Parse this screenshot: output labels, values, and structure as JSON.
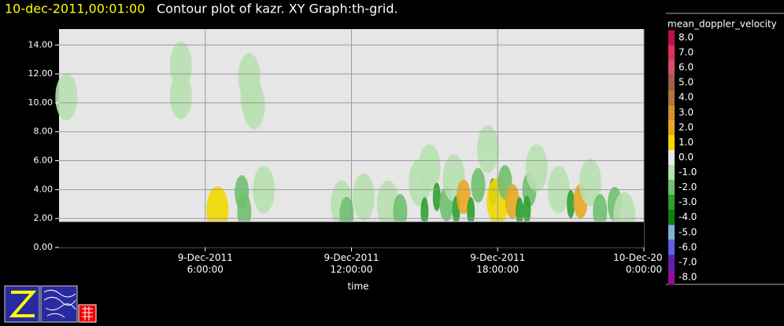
{
  "chart_data": {
    "type": "contour",
    "title_time": "10-dec-2011,00:01:00",
    "title": "Contour plot of kazr.  XY Graph:th-grid.",
    "xlabel": "time",
    "xlim": [
      0,
      24
    ],
    "xticks": [
      {
        "value": 6,
        "label": "9-Dec-2011\n6:00:00"
      },
      {
        "value": 12,
        "label": "9-Dec-2011\n12:00:00"
      },
      {
        "value": 18,
        "label": "9-Dec-2011\n18:00:00"
      },
      {
        "value": 24,
        "label": "10-Dec-2011\n0:00:00"
      }
    ],
    "ylim": [
      0,
      15.1
    ],
    "yticks": [
      {
        "value": 0,
        "label": "0.00"
      },
      {
        "value": 2,
        "label": "2.00"
      },
      {
        "value": 4,
        "label": "4.00"
      },
      {
        "value": 6,
        "label": "6.00"
      },
      {
        "value": 8,
        "label": "8.00"
      },
      {
        "value": 10,
        "label": "10.00"
      },
      {
        "value": 12,
        "label": "12.00"
      },
      {
        "value": 14,
        "label": "14.00"
      }
    ],
    "grid": true,
    "colorbar": {
      "title": "mean_doppler_velocity",
      "levels": [
        {
          "value": 8,
          "label": "8.0"
        },
        {
          "value": 7,
          "label": "7.0"
        },
        {
          "value": 6,
          "label": "6.0"
        },
        {
          "value": 5,
          "label": "5.0"
        },
        {
          "value": 4,
          "label": "4.0"
        },
        {
          "value": 3,
          "label": "3.0"
        },
        {
          "value": 2,
          "label": "2.0"
        },
        {
          "value": 1,
          "label": "1.0"
        },
        {
          "value": 0,
          "label": "0.0"
        },
        {
          "value": -1,
          "label": "-1.0"
        },
        {
          "value": -2,
          "label": "-2.0"
        },
        {
          "value": -3,
          "label": "-3.0"
        },
        {
          "value": -4,
          "label": "-4.0"
        },
        {
          "value": -5,
          "label": "-5.0"
        },
        {
          "value": -6,
          "label": "-6.0"
        },
        {
          "value": -7,
          "label": "-7.0"
        },
        {
          "value": -8,
          "label": "-8.0"
        }
      ],
      "colors": [
        "#c0104a",
        "#e0305a",
        "#d05070",
        "#a0604a",
        "#b0783a",
        "#d8902a",
        "#e8a820",
        "#f0d800",
        "#e8e8e8",
        "#b8e0b0",
        "#70c070",
        "#30a030",
        "#108010",
        "#80b0d8",
        "#6060e0",
        "#6020b0",
        "#901090"
      ]
    },
    "points": [
      {
        "x": 0.3,
        "y": 10.4,
        "v": -1.5
      },
      {
        "x": 5.0,
        "y": 12.6,
        "v": -1.5
      },
      {
        "x": 5.0,
        "y": 10.5,
        "v": -1.5
      },
      {
        "x": 7.8,
        "y": 11.8,
        "v": -1.5
      },
      {
        "x": 7.9,
        "y": 10.4,
        "v": -1.5
      },
      {
        "x": 8.0,
        "y": 9.8,
        "v": -1.5
      },
      {
        "x": 7.5,
        "y": 3.8,
        "v": -2.5
      },
      {
        "x": 7.6,
        "y": 2.5,
        "v": -2.5
      },
      {
        "x": 8.4,
        "y": 4.0,
        "v": -1.5
      },
      {
        "x": 6.5,
        "y": 2.6,
        "v": 1.2
      },
      {
        "x": 11.6,
        "y": 3.0,
        "v": -1.5
      },
      {
        "x": 11.8,
        "y": 2.3,
        "v": -2.5
      },
      {
        "x": 12.5,
        "y": 3.5,
        "v": -1.5
      },
      {
        "x": 13.5,
        "y": 3.0,
        "v": -1.5
      },
      {
        "x": 14.0,
        "y": 2.5,
        "v": -2.5
      },
      {
        "x": 14.8,
        "y": 4.5,
        "v": -1.5
      },
      {
        "x": 15.2,
        "y": 5.5,
        "v": -1.5
      },
      {
        "x": 15.5,
        "y": 3.5,
        "v": -3.5
      },
      {
        "x": 15.0,
        "y": 2.5,
        "v": -3.5
      },
      {
        "x": 15.9,
        "y": 3.0,
        "v": -2.5
      },
      {
        "x": 16.2,
        "y": 4.8,
        "v": -1.5
      },
      {
        "x": 16.3,
        "y": 2.6,
        "v": -3.5
      },
      {
        "x": 16.6,
        "y": 3.5,
        "v": 2.2
      },
      {
        "x": 16.9,
        "y": 2.5,
        "v": -3.5
      },
      {
        "x": 17.2,
        "y": 4.3,
        "v": -2.5
      },
      {
        "x": 17.6,
        "y": 6.8,
        "v": -1.5
      },
      {
        "x": 17.8,
        "y": 3.8,
        "v": -3.5
      },
      {
        "x": 18.0,
        "y": 3.2,
        "v": 1.2
      },
      {
        "x": 18.3,
        "y": 4.5,
        "v": -2.5
      },
      {
        "x": 18.6,
        "y": 3.2,
        "v": 2.2
      },
      {
        "x": 18.9,
        "y": 2.5,
        "v": -3.5
      },
      {
        "x": 19.3,
        "y": 4.0,
        "v": -2.5
      },
      {
        "x": 19.6,
        "y": 5.5,
        "v": -1.5
      },
      {
        "x": 19.2,
        "y": 2.6,
        "v": -3.5
      },
      {
        "x": 20.5,
        "y": 4.0,
        "v": -1.5
      },
      {
        "x": 21.0,
        "y": 3.0,
        "v": -3.5
      },
      {
        "x": 21.4,
        "y": 3.2,
        "v": 2.2
      },
      {
        "x": 21.8,
        "y": 4.5,
        "v": -1.5
      },
      {
        "x": 22.2,
        "y": 2.5,
        "v": -2.5
      },
      {
        "x": 22.8,
        "y": 3.0,
        "v": -2.5
      },
      {
        "x": 23.2,
        "y": 2.2,
        "v": -1.5
      }
    ]
  }
}
